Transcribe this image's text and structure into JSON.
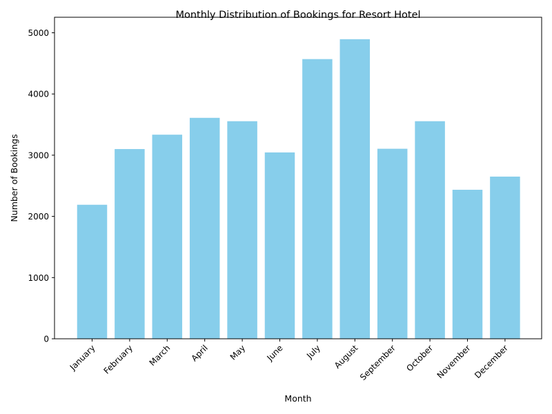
{
  "chart_data": {
    "type": "bar",
    "title": "Monthly Distribution of Bookings for Resort Hotel",
    "xlabel": "Month",
    "ylabel": "Number of Bookings",
    "categories": [
      "January",
      "February",
      "March",
      "April",
      "May",
      "June",
      "July",
      "August",
      "September",
      "October",
      "November",
      "December"
    ],
    "values": [
      2190,
      3100,
      3335,
      3610,
      3555,
      3045,
      4570,
      4895,
      3105,
      3555,
      2435,
      2650
    ],
    "ylim": [
      0,
      5000
    ],
    "yticks": [
      0,
      1000,
      2000,
      3000,
      4000,
      5000
    ],
    "bar_color": "#87ceeb",
    "grid": false,
    "xtick_rotation_deg": 45
  }
}
